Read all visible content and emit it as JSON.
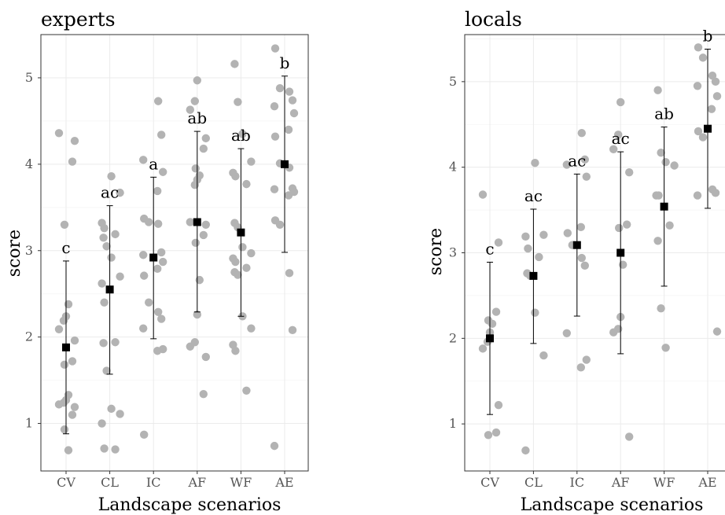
{
  "chart_data": [
    {
      "type": "scatter",
      "title": "experts",
      "xlabel": "Landscape scenarios",
      "ylabel": "score",
      "categories": [
        "CV",
        "CL",
        "IC",
        "AF",
        "WF",
        "AE"
      ],
      "ylim": [
        0.45,
        5.5
      ],
      "yticks": [
        1,
        2,
        3,
        4,
        5
      ],
      "grid": true,
      "means": [
        1.88,
        2.55,
        2.92,
        3.33,
        3.21,
        4.0
      ],
      "error_low": [
        0.88,
        1.57,
        1.98,
        2.29,
        2.24,
        2.98
      ],
      "error_high": [
        2.88,
        3.52,
        3.85,
        4.38,
        4.18,
        5.02
      ],
      "group_letters": [
        "c",
        "ac",
        "a",
        "ab",
        "ab",
        "b"
      ],
      "points": [
        [
          4.36,
          4.27,
          4.03,
          3.3,
          2.38,
          2.24,
          2.19,
          2.09,
          1.96,
          1.72,
          1.68,
          1.33,
          1.27,
          1.24,
          1.22,
          1.19,
          1.1,
          0.93,
          0.69
        ],
        [
          3.86,
          3.67,
          3.32,
          3.26,
          3.19,
          3.15,
          3.05,
          2.92,
          2.7,
          2.62,
          2.4,
          1.94,
          1.93,
          1.61,
          1.17,
          1.11,
          1.0,
          0.71,
          0.7
        ],
        [
          4.73,
          4.34,
          4.05,
          3.91,
          3.69,
          3.37,
          3.33,
          3.31,
          2.98,
          2.95,
          2.87,
          2.79,
          2.71,
          2.4,
          2.29,
          2.21,
          2.1,
          1.86,
          1.84,
          0.87
        ],
        [
          4.97,
          4.73,
          4.63,
          4.3,
          4.18,
          3.95,
          3.87,
          3.82,
          3.76,
          3.33,
          3.3,
          3.18,
          3.09,
          2.66,
          2.26,
          1.94,
          1.89,
          1.77,
          1.34
        ],
        [
          5.16,
          4.72,
          4.35,
          4.03,
          3.9,
          3.86,
          3.77,
          3.32,
          3.27,
          3.04,
          2.97,
          2.91,
          2.87,
          2.8,
          2.75,
          2.72,
          2.24,
          2.1,
          1.91,
          1.84,
          1.38
        ],
        [
          5.34,
          4.88,
          4.84,
          4.74,
          4.67,
          4.59,
          4.4,
          4.32,
          4.01,
          3.96,
          3.72,
          3.71,
          3.68,
          3.64,
          3.35,
          3.3,
          2.74,
          2.08,
          0.74
        ]
      ]
    },
    {
      "type": "scatter",
      "title": "locals",
      "xlabel": "Landscape scenarios",
      "ylabel": "score",
      "categories": [
        "CV",
        "CL",
        "IC",
        "AF",
        "WF",
        "AE"
      ],
      "ylim": [
        0.45,
        5.55
      ],
      "yticks": [
        1,
        2,
        3,
        4,
        5
      ],
      "grid": true,
      "means": [
        2.0,
        2.73,
        3.09,
        3.0,
        3.54,
        4.45
      ],
      "error_low": [
        1.11,
        1.94,
        2.26,
        1.82,
        2.61,
        3.52
      ],
      "error_high": [
        2.89,
        3.51,
        3.92,
        4.18,
        4.47,
        5.38
      ],
      "group_letters": [
        "c",
        "ac",
        "ac",
        "ac",
        "ab",
        "b"
      ],
      "points": [
        [
          3.68,
          3.12,
          2.31,
          2.21,
          2.17,
          2.07,
          1.96,
          1.88,
          1.22,
          0.9,
          0.87
        ],
        [
          4.05,
          3.21,
          3.19,
          3.05,
          2.95,
          2.76,
          2.73,
          2.3,
          1.8,
          0.69
        ],
        [
          4.4,
          4.09,
          4.03,
          3.89,
          3.3,
          3.23,
          3.09,
          2.94,
          2.85,
          2.06,
          1.75,
          1.66
        ],
        [
          4.76,
          4.38,
          4.21,
          3.94,
          3.33,
          3.29,
          2.86,
          2.25,
          2.11,
          2.07,
          0.85
        ],
        [
          4.9,
          4.17,
          4.06,
          4.02,
          3.67,
          3.67,
          3.32,
          3.14,
          2.35,
          1.89
        ],
        [
          5.4,
          5.28,
          5.07,
          5.0,
          4.95,
          4.83,
          4.68,
          4.42,
          4.35,
          3.74,
          3.7,
          3.67,
          2.08
        ]
      ]
    }
  ]
}
